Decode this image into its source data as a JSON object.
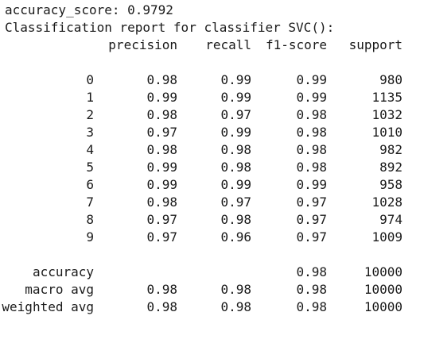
{
  "accuracy_line": "accuracy_score: 0.9792",
  "title_line": "Classification report for classifier SVC():",
  "headers": [
    "precision",
    "recall",
    "f1-score",
    "support"
  ],
  "rows": [
    [
      "0",
      "0.98",
      "0.99",
      "0.99",
      "980"
    ],
    [
      "1",
      "0.99",
      "0.99",
      "0.99",
      "1135"
    ],
    [
      "2",
      "0.98",
      "0.97",
      "0.98",
      "1032"
    ],
    [
      "3",
      "0.97",
      "0.99",
      "0.98",
      "1010"
    ],
    [
      "4",
      "0.98",
      "0.98",
      "0.98",
      "982"
    ],
    [
      "5",
      "0.99",
      "0.98",
      "0.98",
      "892"
    ],
    [
      "6",
      "0.99",
      "0.99",
      "0.99",
      "958"
    ],
    [
      "7",
      "0.98",
      "0.97",
      "0.97",
      "1028"
    ],
    [
      "8",
      "0.97",
      "0.98",
      "0.97",
      "974"
    ],
    [
      "9",
      "0.97",
      "0.96",
      "0.97",
      "1009"
    ]
  ],
  "summary": [
    [
      "accuracy",
      "",
      "",
      "0.98",
      "10000"
    ],
    [
      "macro avg",
      "0.98",
      "0.98",
      "0.98",
      "10000"
    ],
    [
      "weighted avg",
      "0.98",
      "0.98",
      "0.98",
      "10000"
    ]
  ]
}
